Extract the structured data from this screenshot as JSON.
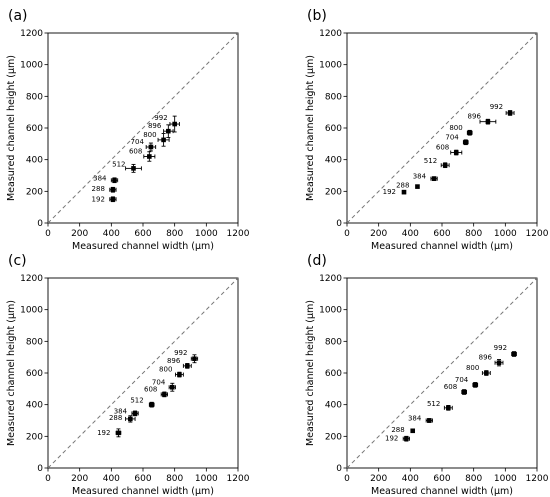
{
  "figure": {
    "xlabel": "Measured channel width (μm)",
    "ylabel": "Measured channel height (μm)",
    "xlim": [
      0,
      1200
    ],
    "ylim": [
      0,
      1200
    ],
    "ticks": [
      0,
      200,
      400,
      600,
      800,
      1000,
      1200
    ],
    "tick_labels": [
      "0",
      "200",
      "400",
      "600",
      "800",
      "1000",
      "1200"
    ],
    "reference_line": "y = x (dashed)",
    "grid": false
  },
  "chart_data": [
    {
      "panel": "(a)",
      "type": "scatter",
      "title": "",
      "xlabel": "Measured channel width (μm)",
      "ylabel": "Measured channel height (μm)",
      "xlim": [
        0,
        1200
      ],
      "ylim": [
        0,
        1200
      ],
      "points": [
        {
          "label": "192",
          "x": 410,
          "y": 150,
          "xerr": 20,
          "yerr": 15
        },
        {
          "label": "288",
          "x": 410,
          "y": 210,
          "xerr": 20,
          "yerr": 15
        },
        {
          "label": "384",
          "x": 420,
          "y": 270,
          "xerr": 20,
          "yerr": 15
        },
        {
          "label": "512",
          "x": 540,
          "y": 345,
          "xerr": 50,
          "yerr": 25
        },
        {
          "label": "608",
          "x": 640,
          "y": 420,
          "xerr": 35,
          "yerr": 30
        },
        {
          "label": "704",
          "x": 650,
          "y": 480,
          "xerr": 30,
          "yerr": 25
        },
        {
          "label": "800",
          "x": 730,
          "y": 525,
          "xerr": 35,
          "yerr": 40
        },
        {
          "label": "896",
          "x": 760,
          "y": 580,
          "xerr": 30,
          "yerr": 40
        },
        {
          "label": "992",
          "x": 800,
          "y": 625,
          "xerr": 30,
          "yerr": 50
        }
      ]
    },
    {
      "panel": "(b)",
      "type": "scatter",
      "title": "",
      "xlabel": "Measured channel width (μm)",
      "ylabel": "Measured channel height (μm)",
      "xlim": [
        0,
        1200
      ],
      "ylim": [
        0,
        1200
      ],
      "points": [
        {
          "label": "192",
          "x": 360,
          "y": 195,
          "xerr": 10,
          "yerr": 10
        },
        {
          "label": "288",
          "x": 445,
          "y": 230,
          "xerr": 10,
          "yerr": 10
        },
        {
          "label": "384",
          "x": 550,
          "y": 280,
          "xerr": 20,
          "yerr": 12
        },
        {
          "label": "512",
          "x": 620,
          "y": 365,
          "xerr": 25,
          "yerr": 15
        },
        {
          "label": "608",
          "x": 690,
          "y": 445,
          "xerr": 35,
          "yerr": 15
        },
        {
          "label": "704",
          "x": 750,
          "y": 510,
          "xerr": 15,
          "yerr": 15
        },
        {
          "label": "800",
          "x": 775,
          "y": 570,
          "xerr": 15,
          "yerr": 15
        },
        {
          "label": "896",
          "x": 890,
          "y": 640,
          "xerr": 50,
          "yerr": 15
        },
        {
          "label": "992",
          "x": 1030,
          "y": 695,
          "xerr": 25,
          "yerr": 15
        }
      ]
    },
    {
      "panel": "(c)",
      "type": "scatter",
      "title": "",
      "xlabel": "Measured channel width (μm)",
      "ylabel": "Measured channel height (μm)",
      "xlim": [
        0,
        1200
      ],
      "ylim": [
        0,
        1200
      ],
      "points": [
        {
          "label": "192",
          "x": 445,
          "y": 222,
          "xerr": 15,
          "yerr": 25
        },
        {
          "label": "288",
          "x": 520,
          "y": 310,
          "xerr": 30,
          "yerr": 20
        },
        {
          "label": "384",
          "x": 550,
          "y": 345,
          "xerr": 20,
          "yerr": 15
        },
        {
          "label": "512",
          "x": 655,
          "y": 400,
          "xerr": 15,
          "yerr": 15
        },
        {
          "label": "608",
          "x": 735,
          "y": 465,
          "xerr": 20,
          "yerr": 15
        },
        {
          "label": "704",
          "x": 785,
          "y": 510,
          "xerr": 20,
          "yerr": 25
        },
        {
          "label": "800",
          "x": 830,
          "y": 590,
          "xerr": 25,
          "yerr": 15
        },
        {
          "label": "896",
          "x": 880,
          "y": 645,
          "xerr": 25,
          "yerr": 15
        },
        {
          "label": "992",
          "x": 925,
          "y": 690,
          "xerr": 20,
          "yerr": 25
        }
      ]
    },
    {
      "panel": "(d)",
      "type": "scatter",
      "title": "",
      "xlabel": "Measured channel width (μm)",
      "ylabel": "Measured channel height (μm)",
      "xlim": [
        0,
        1200
      ],
      "ylim": [
        0,
        1200
      ],
      "points": [
        {
          "label": "192",
          "x": 375,
          "y": 185,
          "xerr": 20,
          "yerr": 15
        },
        {
          "label": "288",
          "x": 415,
          "y": 235,
          "xerr": 10,
          "yerr": 10
        },
        {
          "label": "384",
          "x": 520,
          "y": 300,
          "xerr": 20,
          "yerr": 12
        },
        {
          "label": "512",
          "x": 640,
          "y": 380,
          "xerr": 25,
          "yerr": 15
        },
        {
          "label": "608",
          "x": 740,
          "y": 480,
          "xerr": 15,
          "yerr": 15
        },
        {
          "label": "704",
          "x": 810,
          "y": 525,
          "xerr": 15,
          "yerr": 15
        },
        {
          "label": "800",
          "x": 880,
          "y": 600,
          "xerr": 25,
          "yerr": 15
        },
        {
          "label": "896",
          "x": 960,
          "y": 665,
          "xerr": 25,
          "yerr": 20
        },
        {
          "label": "992",
          "x": 1055,
          "y": 720,
          "xerr": 15,
          "yerr": 15
        }
      ]
    }
  ]
}
